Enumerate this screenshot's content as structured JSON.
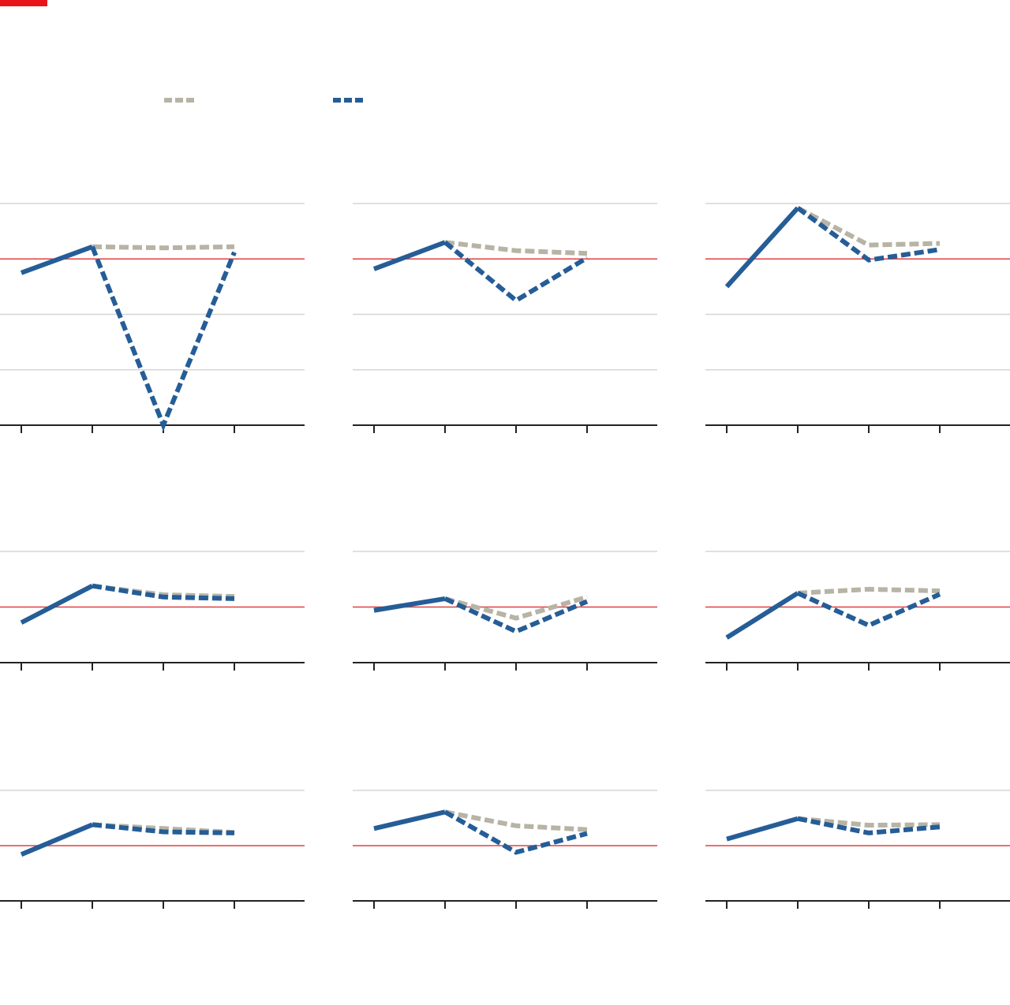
{
  "brand": {
    "color": "#e8141c"
  },
  "colors": {
    "actual": "#255d97",
    "forecast_previous": "#b7b4a5",
    "forecast_current": "#255d97",
    "reference": "#e04040",
    "grid": "#d6d6d6",
    "axis": "#222222"
  },
  "legend": {
    "items": [
      {
        "key": "forecast_previous",
        "label": "",
        "style": "dashed"
      },
      {
        "key": "forecast_current",
        "label": "",
        "style": "dashed"
      }
    ]
  },
  "chart_data": [
    {
      "type": "line",
      "title": "",
      "x": [
        1,
        2,
        3,
        4
      ],
      "ylim": [
        -3,
        1
      ],
      "gridlines": [
        -3,
        -2,
        -1,
        1
      ],
      "reference": 0,
      "series": [
        {
          "key": "actual",
          "values": [
            -0.25,
            0.22,
            null,
            null
          ]
        },
        {
          "key": "forecast_previous",
          "values": [
            null,
            0.22,
            0.2,
            0.22
          ]
        },
        {
          "key": "forecast_current",
          "values": [
            null,
            0.22,
            -3.0,
            0.12
          ]
        }
      ]
    },
    {
      "type": "line",
      "title": "",
      "x": [
        1,
        2,
        3,
        4
      ],
      "ylim": [
        -3,
        1
      ],
      "gridlines": [
        -3,
        -2,
        -1,
        1
      ],
      "reference": 0,
      "series": [
        {
          "key": "actual",
          "values": [
            -0.18,
            0.3,
            null,
            null
          ]
        },
        {
          "key": "forecast_previous",
          "values": [
            null,
            0.3,
            0.15,
            0.1
          ]
        },
        {
          "key": "forecast_current",
          "values": [
            null,
            0.3,
            -0.75,
            0.02
          ]
        }
      ]
    },
    {
      "type": "line",
      "title": "",
      "x": [
        1,
        2,
        3,
        4
      ],
      "ylim": [
        -3,
        1
      ],
      "gridlines": [
        -3,
        -2,
        -1,
        1
      ],
      "reference": 0,
      "series": [
        {
          "key": "actual",
          "values": [
            -0.5,
            0.92,
            null,
            null
          ]
        },
        {
          "key": "forecast_previous",
          "values": [
            null,
            0.92,
            0.25,
            0.28
          ]
        },
        {
          "key": "forecast_current",
          "values": [
            null,
            0.92,
            -0.02,
            0.17
          ]
        }
      ]
    },
    {
      "type": "line",
      "title": "",
      "x": [
        1,
        2,
        3,
        4
      ],
      "ylim": [
        -1,
        1
      ],
      "gridlines": [
        -1,
        1
      ],
      "reference": 0,
      "series": [
        {
          "key": "actual",
          "values": [
            -0.28,
            0.38,
            null,
            null
          ]
        },
        {
          "key": "forecast_previous",
          "values": [
            null,
            0.38,
            0.22,
            0.19
          ]
        },
        {
          "key": "forecast_current",
          "values": [
            null,
            0.38,
            0.18,
            0.15
          ]
        }
      ]
    },
    {
      "type": "line",
      "title": "",
      "x": [
        1,
        2,
        3,
        4
      ],
      "ylim": [
        -1,
        1
      ],
      "gridlines": [
        -1,
        1
      ],
      "reference": 0,
      "series": [
        {
          "key": "actual",
          "values": [
            -0.06,
            0.15,
            null,
            null
          ]
        },
        {
          "key": "forecast_previous",
          "values": [
            null,
            0.15,
            -0.2,
            0.18
          ]
        },
        {
          "key": "forecast_current",
          "values": [
            null,
            0.15,
            -0.44,
            0.1
          ]
        }
      ]
    },
    {
      "type": "line",
      "title": "",
      "x": [
        1,
        2,
        3,
        4
      ],
      "ylim": [
        -1,
        1
      ],
      "gridlines": [
        -1,
        1
      ],
      "reference": 0,
      "series": [
        {
          "key": "actual",
          "values": [
            -0.55,
            0.25,
            null,
            null
          ]
        },
        {
          "key": "forecast_previous",
          "values": [
            null,
            0.25,
            0.32,
            0.29
          ]
        },
        {
          "key": "forecast_current",
          "values": [
            null,
            0.25,
            -0.33,
            0.23
          ]
        }
      ]
    },
    {
      "type": "line",
      "title": "",
      "x": [
        1,
        2,
        3,
        4
      ],
      "ylim": [
        -1,
        1
      ],
      "gridlines": [
        -1,
        1
      ],
      "reference": 0,
      "series": [
        {
          "key": "actual",
          "values": [
            -0.16,
            0.38,
            null,
            null
          ]
        },
        {
          "key": "forecast_previous",
          "values": [
            null,
            0.38,
            0.31,
            0.24
          ]
        },
        {
          "key": "forecast_current",
          "values": [
            null,
            0.38,
            0.25,
            0.23
          ]
        }
      ]
    },
    {
      "type": "line",
      "title": "",
      "x": [
        1,
        2,
        3,
        4
      ],
      "ylim": [
        -1,
        1
      ],
      "gridlines": [
        -1,
        1
      ],
      "reference": 0,
      "series": [
        {
          "key": "actual",
          "values": [
            0.31,
            0.61,
            null,
            null
          ]
        },
        {
          "key": "forecast_previous",
          "values": [
            null,
            0.61,
            0.36,
            0.29
          ]
        },
        {
          "key": "forecast_current",
          "values": [
            null,
            0.61,
            -0.12,
            0.22
          ]
        }
      ]
    },
    {
      "type": "line",
      "title": "",
      "x": [
        1,
        2,
        3,
        4
      ],
      "ylim": [
        -1,
        1
      ],
      "gridlines": [
        -1,
        1
      ],
      "reference": 0,
      "series": [
        {
          "key": "actual",
          "values": [
            0.12,
            0.49,
            null,
            null
          ]
        },
        {
          "key": "forecast_previous",
          "values": [
            null,
            0.49,
            0.37,
            0.38
          ]
        },
        {
          "key": "forecast_current",
          "values": [
            null,
            0.49,
            0.23,
            0.34
          ]
        }
      ]
    }
  ]
}
